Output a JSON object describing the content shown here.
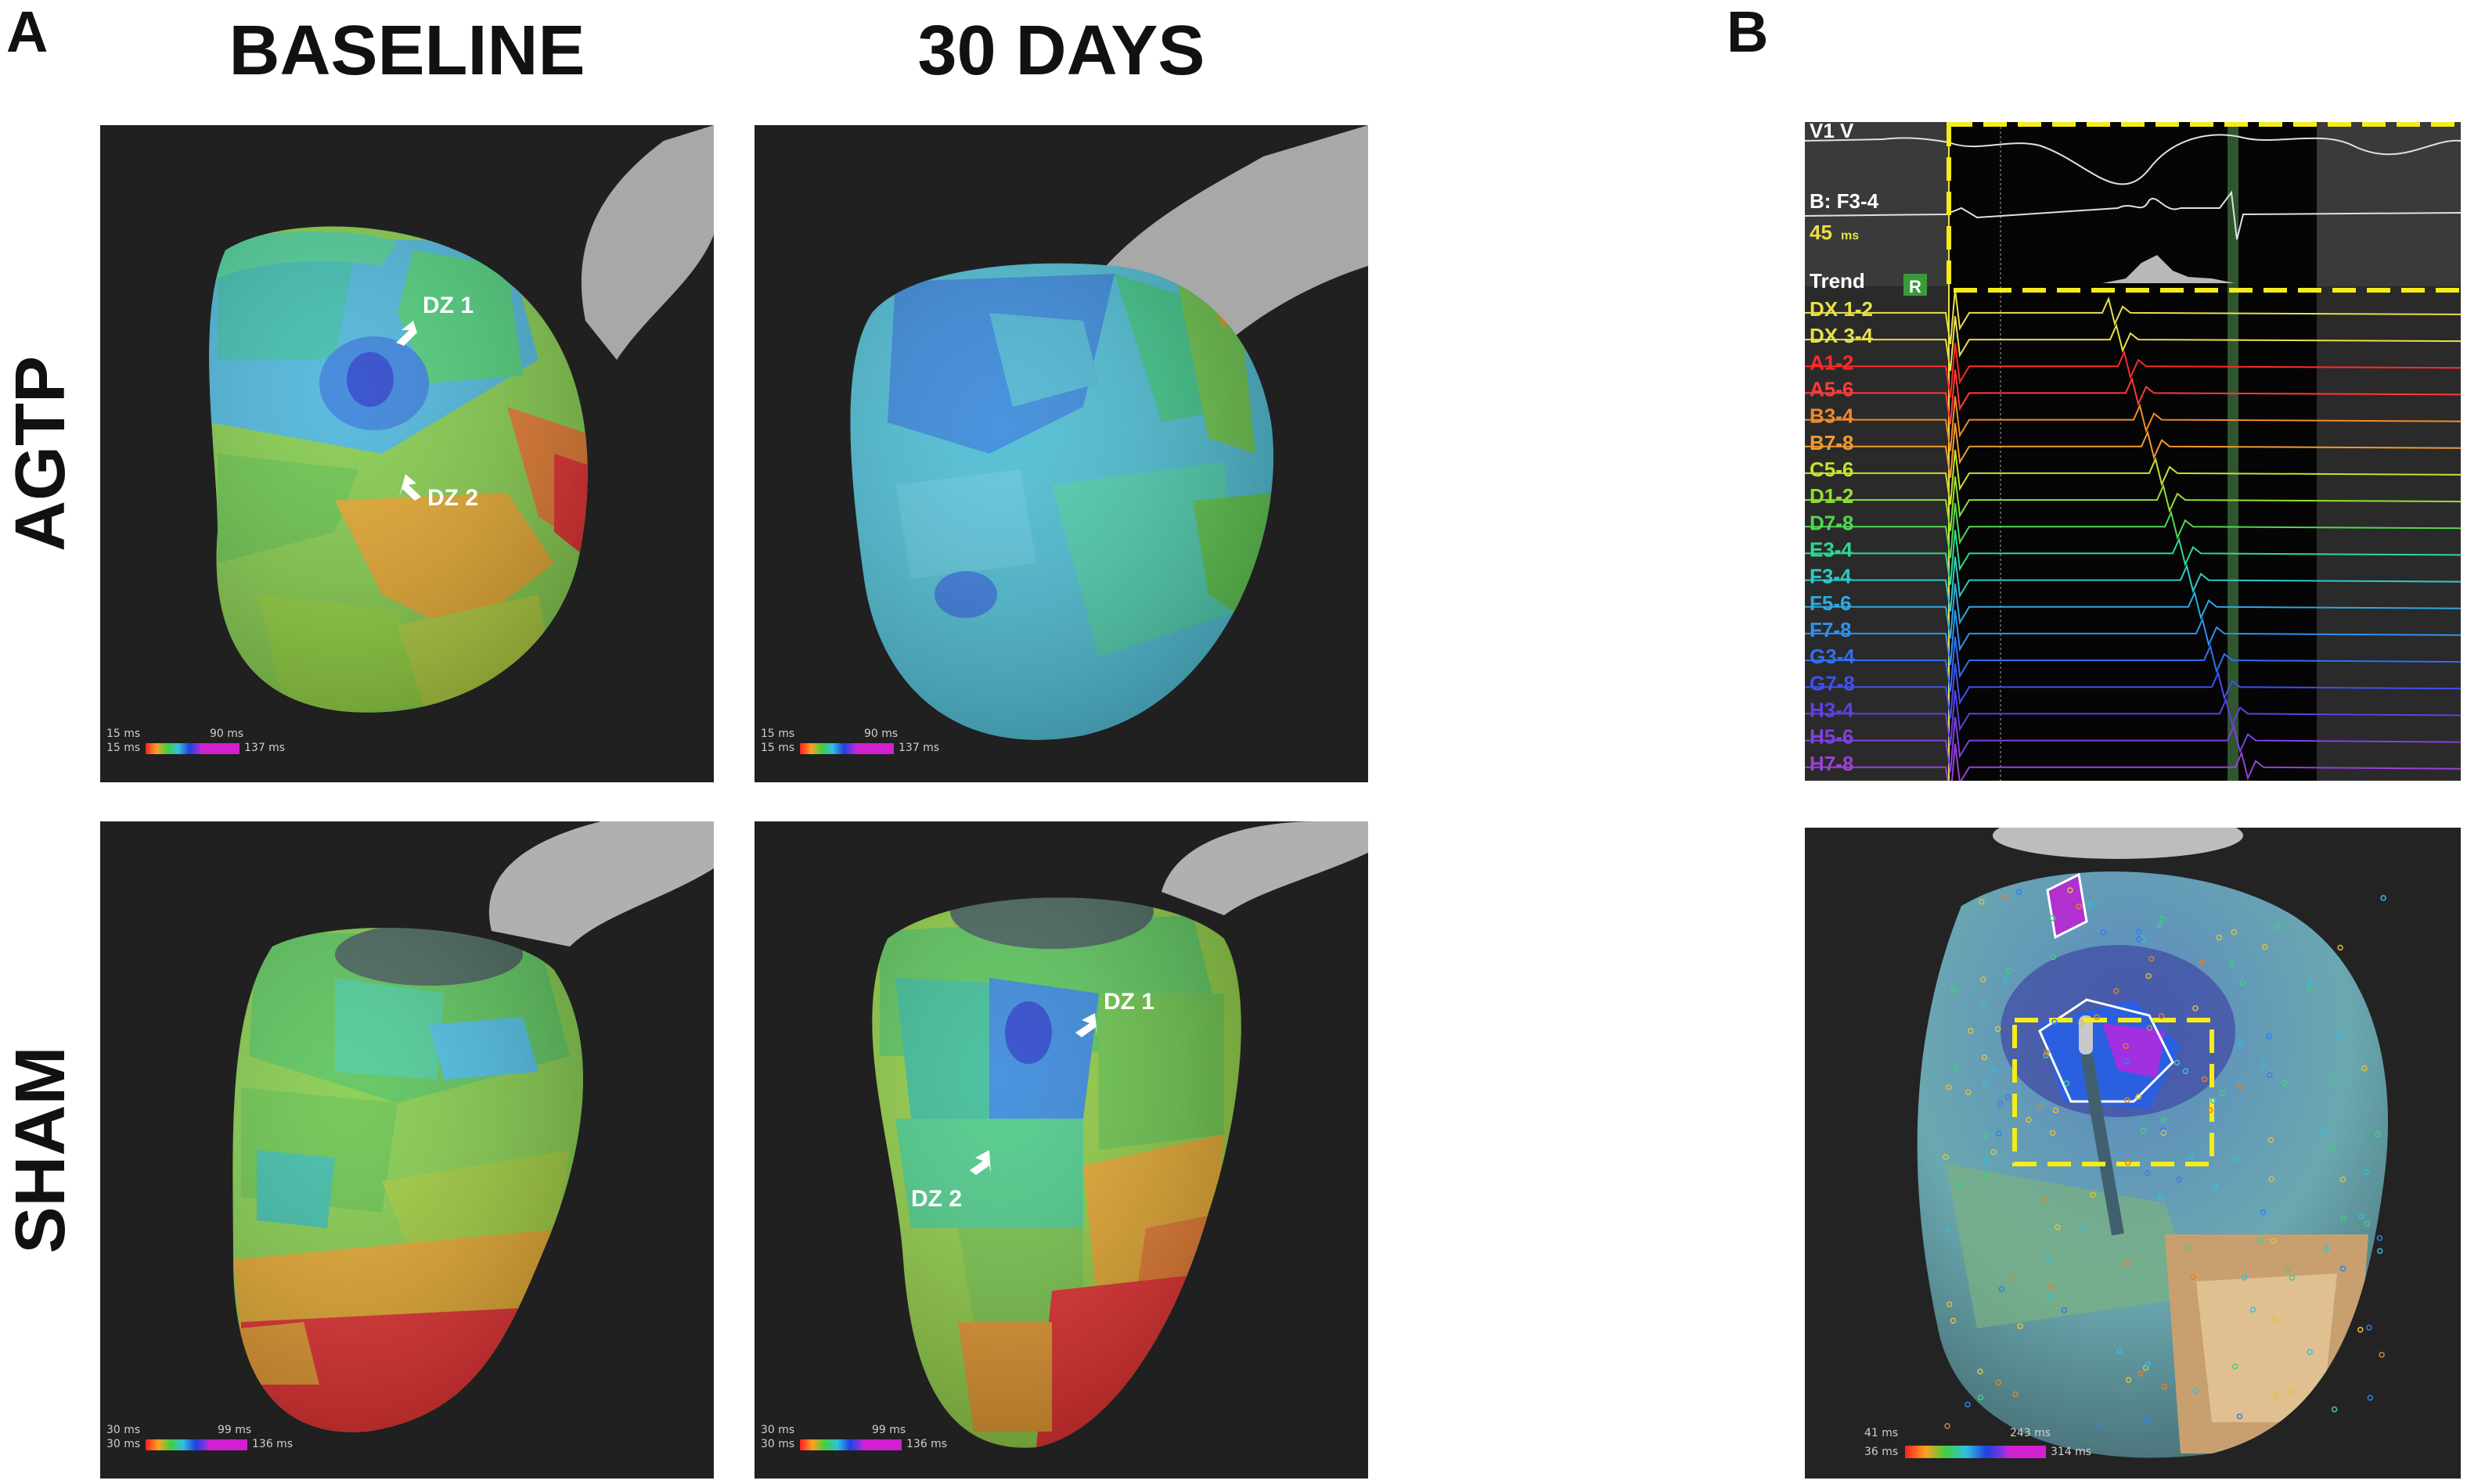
{
  "figure": {
    "panel_a_letter": "A",
    "panel_b_letter": "B",
    "columns": [
      "BASELINE",
      "30 DAYS"
    ],
    "rows": [
      "AGTP",
      "SHAM"
    ]
  },
  "maps": {
    "agtp_baseline": {
      "dz1": "DZ 1",
      "dz2": "DZ 2",
      "scale_top": "15 ms",
      "scale_bottom": "15 ms",
      "scale_mid": "90 ms",
      "scale_max": "137 ms"
    },
    "agtp_30days": {
      "scale_top": "15 ms",
      "scale_bottom": "15 ms",
      "scale_mid": "90 ms",
      "scale_max": "137 ms"
    },
    "sham_baseline": {
      "scale_top": "30 ms",
      "scale_bottom": "30 ms",
      "scale_mid": "99 ms",
      "scale_max": "136 ms"
    },
    "sham_30days": {
      "dz1": "DZ 1",
      "dz2": "DZ 2",
      "scale_top": "30 ms",
      "scale_bottom": "30 ms",
      "scale_mid": "99 ms",
      "scale_max": "136 ms"
    }
  },
  "electrograms": {
    "top_labels": [
      "V1 V",
      "B: F3-4",
      "45",
      "ms",
      "Trend",
      "R"
    ],
    "channels": [
      {
        "label": "DX 1-2",
        "color": "#e8e04a"
      },
      {
        "label": "DX 3-4",
        "color": "#e8e04a"
      },
      {
        "label": "A1-2",
        "color": "#ff2a2a"
      },
      {
        "label": "A5-6",
        "color": "#ff3a3a"
      },
      {
        "label": "B3-4",
        "color": "#f08a2a"
      },
      {
        "label": "B7-8",
        "color": "#f09a30"
      },
      {
        "label": "C5-6",
        "color": "#c8e030"
      },
      {
        "label": "D1-2",
        "color": "#90e030"
      },
      {
        "label": "D7-8",
        "color": "#50d850"
      },
      {
        "label": "E3-4",
        "color": "#30d890"
      },
      {
        "label": "F3-4",
        "color": "#30c8c8"
      },
      {
        "label": "F5-6",
        "color": "#30a8e0"
      },
      {
        "label": "F7-8",
        "color": "#3090f0"
      },
      {
        "label": "G3-4",
        "color": "#3070f0"
      },
      {
        "label": "G7-8",
        "color": "#4050f0"
      },
      {
        "label": "H3-4",
        "color": "#6040e0"
      },
      {
        "label": "H5-6",
        "color": "#8040e0"
      },
      {
        "label": "H7-8",
        "color": "#9a40d8"
      }
    ]
  },
  "map_b": {
    "scale_top_left": "41 ms",
    "scale_bottom_left": "36 ms",
    "scale_top_right": "243 ms",
    "scale_bottom_right": "314 ms"
  },
  "colors": {
    "highlight_box": "#f5ec1a",
    "panel_background": "#202020"
  }
}
